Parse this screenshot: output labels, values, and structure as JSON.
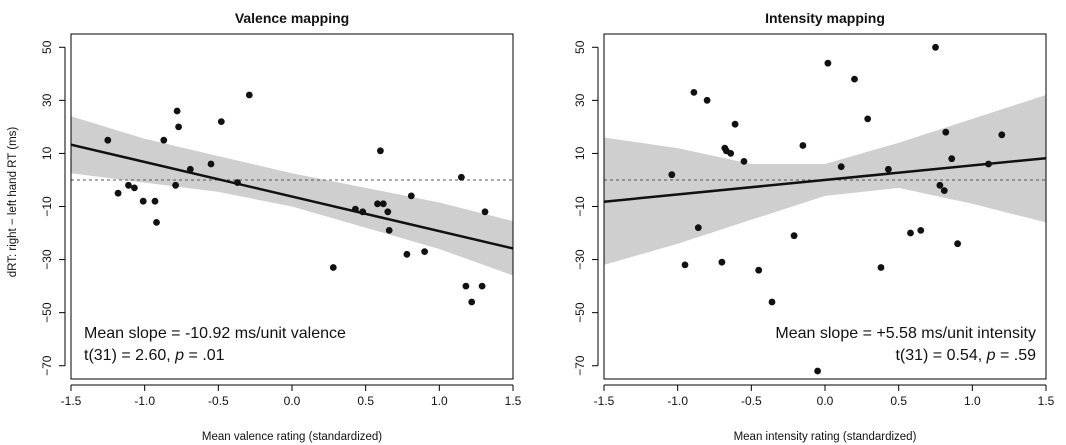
{
  "figure": {
    "ylabel": "dRT: right − left hand RT (ms)"
  },
  "chart_data": [
    {
      "type": "scatter",
      "title": "Valence mapping",
      "xlabel": "Mean valence rating (standardized)",
      "ylabel": "dRT: right − left hand RT (ms)",
      "xlim": [
        -1.5,
        1.5
      ],
      "ylim": [
        -75,
        55
      ],
      "x_ticks": [
        -1.5,
        -1.0,
        -0.5,
        0.0,
        0.5,
        1.0,
        1.5
      ],
      "x_tick_labels": [
        "-1.5",
        "-1.0",
        "-0.5",
        "0.0",
        "0.5",
        "1.0",
        "1.5"
      ],
      "y_ticks": [
        50,
        30,
        10,
        -10,
        -30,
        -50,
        -70
      ],
      "y_tick_labels": [
        "50",
        "30",
        "10",
        "−10",
        "−30",
        "−50",
        "−70"
      ],
      "grid": false,
      "reference_line_y": 0,
      "points": [
        [
          -1.25,
          15
        ],
        [
          -1.18,
          -5
        ],
        [
          -1.11,
          -2
        ],
        [
          -1.07,
          -3
        ],
        [
          -1.01,
          -8
        ],
        [
          -0.93,
          -8
        ],
        [
          -0.92,
          -16
        ],
        [
          -0.87,
          15
        ],
        [
          -0.79,
          -2
        ],
        [
          -0.78,
          26
        ],
        [
          -0.77,
          20
        ],
        [
          -0.69,
          4
        ],
        [
          -0.55,
          6
        ],
        [
          -0.48,
          22
        ],
        [
          -0.37,
          -1
        ],
        [
          -0.29,
          32
        ],
        [
          0.28,
          -33
        ],
        [
          0.43,
          -11
        ],
        [
          0.48,
          -12
        ],
        [
          0.58,
          -9
        ],
        [
          0.6,
          11
        ],
        [
          0.62,
          -9
        ],
        [
          0.65,
          -12
        ],
        [
          0.66,
          -19
        ],
        [
          0.78,
          -28
        ],
        [
          0.81,
          -6
        ],
        [
          0.9,
          -27
        ],
        [
          1.15,
          1
        ],
        [
          1.18,
          -40
        ],
        [
          1.22,
          -46
        ],
        [
          1.29,
          -40
        ],
        [
          1.31,
          -12
        ]
      ],
      "regression": {
        "x": [
          -1.5,
          1.5
        ],
        "y": [
          13.3,
          -25.8
        ]
      },
      "ci_band": {
        "x": [
          -1.5,
          -1.0,
          -0.5,
          0.0,
          0.5,
          1.0,
          1.5
        ],
        "lower": [
          2.5,
          -1,
          -4.5,
          -10,
          -18,
          -26,
          -36
        ],
        "upper": [
          24,
          15.5,
          9,
          2.5,
          -3,
          -8.5,
          -15.5
        ]
      },
      "annotations": {
        "line1": "Mean slope = -10.92 ms/unit valence",
        "line2_prefix": "t(31) = 2.60, ",
        "line2_p": "p",
        "line2_suffix": " = .01",
        "align": "left"
      }
    },
    {
      "type": "scatter",
      "title": "Intensity mapping",
      "xlabel": "Mean intensity rating (standardized)",
      "ylabel": "",
      "xlim": [
        -1.5,
        1.5
      ],
      "ylim": [
        -75,
        55
      ],
      "x_ticks": [
        -1.5,
        -1.0,
        -0.5,
        0.0,
        0.5,
        1.0,
        1.5
      ],
      "x_tick_labels": [
        "-1.5",
        "-1.0",
        "-0.5",
        "0.0",
        "0.5",
        "1.0",
        "1.5"
      ],
      "y_ticks": [
        50,
        30,
        10,
        -10,
        -30,
        -50,
        -70
      ],
      "y_tick_labels": [
        "50",
        "30",
        "10",
        "−10",
        "−30",
        "−50",
        "−70"
      ],
      "grid": false,
      "reference_line_y": 0,
      "points": [
        [
          -1.04,
          2
        ],
        [
          -0.95,
          -32
        ],
        [
          -0.89,
          33
        ],
        [
          -0.86,
          -18
        ],
        [
          -0.8,
          30
        ],
        [
          -0.7,
          -31
        ],
        [
          -0.68,
          12
        ],
        [
          -0.67,
          11
        ],
        [
          -0.64,
          10
        ],
        [
          -0.61,
          21
        ],
        [
          -0.55,
          7
        ],
        [
          -0.45,
          -34
        ],
        [
          -0.36,
          -46
        ],
        [
          -0.21,
          -21
        ],
        [
          -0.15,
          13
        ],
        [
          -0.05,
          -72
        ],
        [
          0.02,
          44
        ],
        [
          0.11,
          5
        ],
        [
          0.2,
          38
        ],
        [
          0.29,
          23
        ],
        [
          0.38,
          -33
        ],
        [
          0.43,
          4
        ],
        [
          0.58,
          -20
        ],
        [
          0.65,
          -19
        ],
        [
          0.75,
          50
        ],
        [
          0.78,
          -2
        ],
        [
          0.81,
          -4
        ],
        [
          0.82,
          18
        ],
        [
          0.86,
          8
        ],
        [
          0.9,
          -24
        ],
        [
          1.11,
          6
        ],
        [
          1.2,
          17
        ]
      ],
      "regression": {
        "x": [
          -1.5,
          1.5
        ],
        "y": [
          -8.2,
          8.2
        ]
      },
      "ci_band": {
        "x": [
          -1.5,
          -1.0,
          -0.5,
          0.0,
          0.5,
          1.0,
          1.5
        ],
        "lower": [
          -32,
          -24,
          -15,
          -6,
          -3,
          -9,
          -16
        ],
        "upper": [
          16,
          12,
          6,
          6,
          14,
          23,
          32
        ]
      },
      "annotations": {
        "line1": "Mean slope = +5.58 ms/unit intensity",
        "line2_prefix": "t(31) = 0.54, ",
        "line2_p": "p",
        "line2_suffix": " = .59",
        "align": "right"
      }
    }
  ]
}
